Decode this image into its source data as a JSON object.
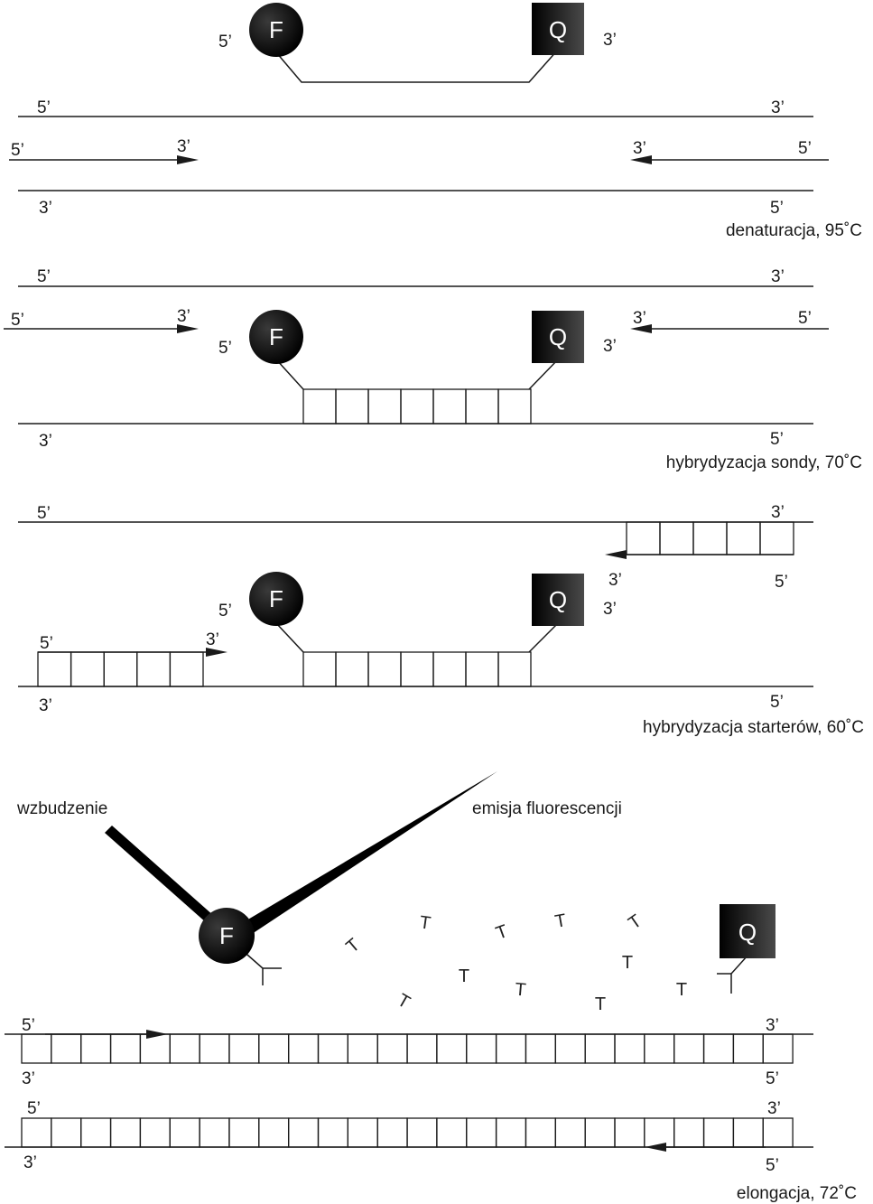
{
  "colors": {
    "ink": "#1a1a1a",
    "background": "#ffffff"
  },
  "ends": {
    "five": "5’",
    "three": "3’"
  },
  "probe": {
    "fluorophore": "F",
    "quencher": "Q"
  },
  "stages": [
    {
      "caption": "denaturacja, 95˚C"
    },
    {
      "caption": "hybrydyzacja sondy, 70˚C"
    },
    {
      "caption": "hybrydyzacja starterów, 60˚C"
    },
    {
      "caption": "elongacja, 72˚C"
    }
  ],
  "labels": {
    "excitation": "wzbudzenie",
    "emission": "emisja fluorescencji",
    "nucleotide": "T"
  }
}
